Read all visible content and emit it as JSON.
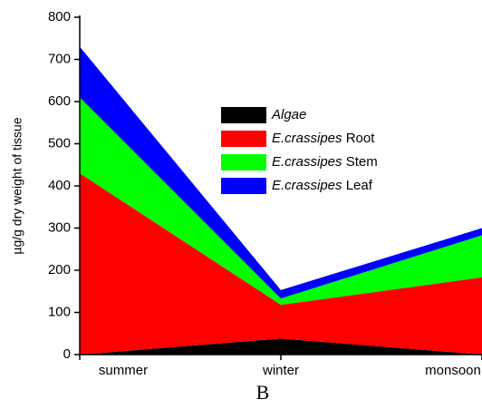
{
  "chart_data": {
    "type": "stacked_area",
    "subtitle": "B",
    "y_label": "µg/g dry weight of tissue",
    "categories": [
      "summer",
      "winter",
      "monsoon"
    ],
    "series": [
      {
        "name": "Algae",
        "color": "#000000",
        "values": [
          0,
          38,
          0
        ]
      },
      {
        "name": "E.crassipes Root",
        "color": "#ff0000",
        "values": [
          430,
          80,
          183
        ]
      },
      {
        "name": "E.crassipes Stem",
        "color": "#00ff00",
        "values": [
          180,
          15,
          100
        ]
      },
      {
        "name": "E.crassipes Leaf",
        "color": "#0000ff",
        "values": [
          120,
          20,
          17
        ]
      }
    ],
    "ylim": [
      0,
      800
    ],
    "yticks": [
      0,
      100,
      200,
      300,
      400,
      500,
      600,
      700,
      800
    ],
    "legend": "upper center"
  }
}
